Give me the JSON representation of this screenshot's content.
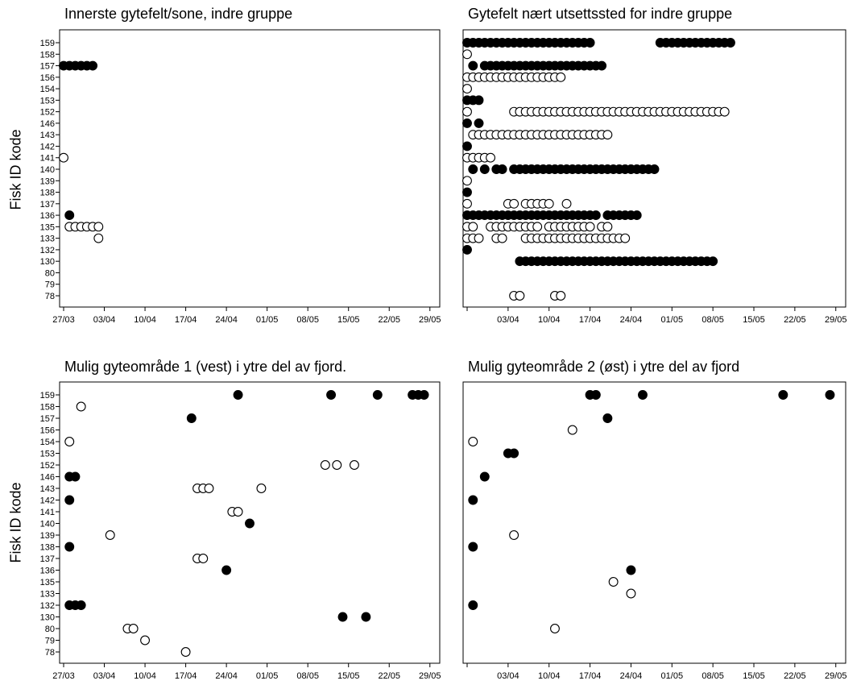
{
  "y_axis_label": "Fisk ID kode",
  "chart_data": [
    {
      "type": "scatter",
      "title": "Innerste gytefelt/sone, indre gruppe",
      "ylabel": "Fisk ID kode",
      "show_ylabel": true,
      "show_yticks": true,
      "x_ticks": [
        "27/03",
        "03/04",
        "10/04",
        "17/04",
        "24/04",
        "01/05",
        "08/05",
        "15/05",
        "22/05",
        "29/05"
      ],
      "show_first_x_tick": true,
      "xlim": [
        "27/03",
        "30/05"
      ],
      "y_categories": [
        "159",
        "158",
        "157",
        "156",
        "154",
        "153",
        "152",
        "146",
        "143",
        "142",
        "141",
        "140",
        "139",
        "138",
        "137",
        "136",
        "135",
        "133",
        "132",
        "130",
        "80",
        "79",
        "78"
      ],
      "legend": [],
      "points": [
        {
          "x": "27/03",
          "y": "157",
          "fill": "filled"
        },
        {
          "x": "28/03",
          "y": "157",
          "fill": "filled"
        },
        {
          "x": "29/03",
          "y": "157",
          "fill": "filled"
        },
        {
          "x": "30/03",
          "y": "157",
          "fill": "filled"
        },
        {
          "x": "31/03",
          "y": "157",
          "fill": "filled"
        },
        {
          "x": "01/04",
          "y": "157",
          "fill": "filled"
        },
        {
          "x": "27/03",
          "y": "141",
          "fill": "open"
        },
        {
          "x": "28/03",
          "y": "136",
          "fill": "filled"
        },
        {
          "x": "28/03",
          "y": "135",
          "fill": "open"
        },
        {
          "x": "29/03",
          "y": "135",
          "fill": "open"
        },
        {
          "x": "30/03",
          "y": "135",
          "fill": "open"
        },
        {
          "x": "31/03",
          "y": "135",
          "fill": "open"
        },
        {
          "x": "01/04",
          "y": "135",
          "fill": "open"
        },
        {
          "x": "02/04",
          "y": "135",
          "fill": "open"
        },
        {
          "x": "02/04",
          "y": "133",
          "fill": "open"
        }
      ]
    },
    {
      "type": "scatter",
      "title": "Gytefelt nært utsettssted for indre gruppe",
      "ylabel": "",
      "show_ylabel": false,
      "show_yticks": false,
      "x_ticks": [
        "27/03",
        "03/04",
        "10/04",
        "17/04",
        "24/04",
        "01/05",
        "08/05",
        "15/05",
        "22/05",
        "29/05"
      ],
      "show_first_x_tick": false,
      "xlim": [
        "27/03",
        "30/05"
      ],
      "y_categories": [
        "159",
        "158",
        "157",
        "156",
        "154",
        "153",
        "152",
        "146",
        "143",
        "142",
        "141",
        "140",
        "139",
        "138",
        "137",
        "136",
        "135",
        "133",
        "132",
        "130",
        "80",
        "79",
        "78"
      ],
      "legend": [],
      "segments": [
        {
          "y": "159",
          "from": "27/03",
          "to": "17/04",
          "fill": "filled"
        },
        {
          "y": "159",
          "from": "29/04",
          "to": "11/05",
          "fill": "filled"
        },
        {
          "y": "157",
          "from": "30/03",
          "to": "19/04",
          "fill": "filled"
        },
        {
          "y": "156",
          "from": "27/03",
          "to": "12/04",
          "fill": "open"
        },
        {
          "y": "152",
          "from": "04/04",
          "to": "10/05",
          "fill": "open"
        },
        {
          "y": "143",
          "from": "28/03",
          "to": "20/04",
          "fill": "open"
        },
        {
          "y": "141",
          "from": "27/03",
          "to": "31/03",
          "fill": "open"
        },
        {
          "y": "140",
          "from": "04/04",
          "to": "28/04",
          "fill": "filled"
        },
        {
          "y": "136",
          "from": "27/03",
          "to": "18/04",
          "fill": "filled"
        },
        {
          "y": "136",
          "from": "20/04",
          "to": "25/04",
          "fill": "filled"
        },
        {
          "y": "135",
          "from": "31/03",
          "to": "08/04",
          "fill": "open"
        },
        {
          "y": "135",
          "from": "10/04",
          "to": "17/04",
          "fill": "open"
        },
        {
          "y": "133",
          "from": "06/04",
          "to": "23/04",
          "fill": "open"
        },
        {
          "y": "130",
          "from": "05/04",
          "to": "08/05",
          "fill": "filled"
        }
      ],
      "points": [
        {
          "x": "27/03",
          "y": "158",
          "fill": "open"
        },
        {
          "x": "28/03",
          "y": "157",
          "fill": "filled"
        },
        {
          "x": "27/03",
          "y": "154",
          "fill": "open"
        },
        {
          "x": "27/03",
          "y": "153",
          "fill": "filled"
        },
        {
          "x": "28/03",
          "y": "153",
          "fill": "filled"
        },
        {
          "x": "29/03",
          "y": "153",
          "fill": "filled"
        },
        {
          "x": "27/03",
          "y": "152",
          "fill": "open"
        },
        {
          "x": "27/03",
          "y": "146",
          "fill": "filled"
        },
        {
          "x": "29/03",
          "y": "146",
          "fill": "filled"
        },
        {
          "x": "27/03",
          "y": "142",
          "fill": "filled"
        },
        {
          "x": "28/03",
          "y": "140",
          "fill": "filled"
        },
        {
          "x": "30/03",
          "y": "140",
          "fill": "filled"
        },
        {
          "x": "01/04",
          "y": "140",
          "fill": "filled"
        },
        {
          "x": "02/04",
          "y": "140",
          "fill": "filled"
        },
        {
          "x": "27/03",
          "y": "139",
          "fill": "open"
        },
        {
          "x": "27/03",
          "y": "138",
          "fill": "filled"
        },
        {
          "x": "27/03",
          "y": "137",
          "fill": "open"
        },
        {
          "x": "03/04",
          "y": "137",
          "fill": "open"
        },
        {
          "x": "04/04",
          "y": "137",
          "fill": "open"
        },
        {
          "x": "06/04",
          "y": "137",
          "fill": "open"
        },
        {
          "x": "07/04",
          "y": "137",
          "fill": "open"
        },
        {
          "x": "08/04",
          "y": "137",
          "fill": "open"
        },
        {
          "x": "09/04",
          "y": "137",
          "fill": "open"
        },
        {
          "x": "10/04",
          "y": "137",
          "fill": "open"
        },
        {
          "x": "13/04",
          "y": "137",
          "fill": "open"
        },
        {
          "x": "27/03",
          "y": "135",
          "fill": "open"
        },
        {
          "x": "28/03",
          "y": "135",
          "fill": "open"
        },
        {
          "x": "19/04",
          "y": "135",
          "fill": "open"
        },
        {
          "x": "20/04",
          "y": "135",
          "fill": "open"
        },
        {
          "x": "27/03",
          "y": "133",
          "fill": "open"
        },
        {
          "x": "28/03",
          "y": "133",
          "fill": "open"
        },
        {
          "x": "29/03",
          "y": "133",
          "fill": "open"
        },
        {
          "x": "01/04",
          "y": "133",
          "fill": "open"
        },
        {
          "x": "02/04",
          "y": "133",
          "fill": "open"
        },
        {
          "x": "27/03",
          "y": "132",
          "fill": "filled"
        },
        {
          "x": "04/04",
          "y": "78",
          "fill": "open"
        },
        {
          "x": "05/04",
          "y": "78",
          "fill": "open"
        },
        {
          "x": "11/04",
          "y": "78",
          "fill": "open"
        },
        {
          "x": "12/04",
          "y": "78",
          "fill": "open"
        }
      ]
    },
    {
      "type": "scatter",
      "title": "Mulig gyteområde 1 (vest) i ytre del av fjord.",
      "ylabel": "Fisk ID kode",
      "show_ylabel": true,
      "show_yticks": true,
      "x_ticks": [
        "27/03",
        "03/04",
        "10/04",
        "17/04",
        "24/04",
        "01/05",
        "08/05",
        "15/05",
        "22/05",
        "29/05"
      ],
      "show_first_x_tick": true,
      "xlim": [
        "27/03",
        "30/05"
      ],
      "y_categories": [
        "159",
        "158",
        "157",
        "156",
        "154",
        "153",
        "152",
        "146",
        "143",
        "142",
        "141",
        "140",
        "139",
        "138",
        "137",
        "136",
        "135",
        "133",
        "132",
        "130",
        "80",
        "79",
        "78"
      ],
      "legend": [],
      "points": [
        {
          "x": "26/04",
          "y": "159",
          "fill": "filled"
        },
        {
          "x": "12/05",
          "y": "159",
          "fill": "filled"
        },
        {
          "x": "20/05",
          "y": "159",
          "fill": "filled"
        },
        {
          "x": "26/05",
          "y": "159",
          "fill": "filled"
        },
        {
          "x": "27/05",
          "y": "159",
          "fill": "filled"
        },
        {
          "x": "28/05",
          "y": "159",
          "fill": "filled"
        },
        {
          "x": "30/03",
          "y": "158",
          "fill": "open"
        },
        {
          "x": "18/04",
          "y": "157",
          "fill": "filled"
        },
        {
          "x": "28/03",
          "y": "154",
          "fill": "open"
        },
        {
          "x": "11/05",
          "y": "152",
          "fill": "open"
        },
        {
          "x": "13/05",
          "y": "152",
          "fill": "open"
        },
        {
          "x": "16/05",
          "y": "152",
          "fill": "open"
        },
        {
          "x": "28/03",
          "y": "146",
          "fill": "filled"
        },
        {
          "x": "29/03",
          "y": "146",
          "fill": "filled"
        },
        {
          "x": "19/04",
          "y": "143",
          "fill": "open"
        },
        {
          "x": "20/04",
          "y": "143",
          "fill": "open"
        },
        {
          "x": "21/04",
          "y": "143",
          "fill": "open"
        },
        {
          "x": "30/04",
          "y": "143",
          "fill": "open"
        },
        {
          "x": "28/03",
          "y": "142",
          "fill": "filled"
        },
        {
          "x": "25/04",
          "y": "141",
          "fill": "open"
        },
        {
          "x": "26/04",
          "y": "141",
          "fill": "open"
        },
        {
          "x": "28/04",
          "y": "140",
          "fill": "filled"
        },
        {
          "x": "04/04",
          "y": "139",
          "fill": "open"
        },
        {
          "x": "28/03",
          "y": "138",
          "fill": "filled"
        },
        {
          "x": "19/04",
          "y": "137",
          "fill": "open"
        },
        {
          "x": "20/04",
          "y": "137",
          "fill": "open"
        },
        {
          "x": "24/04",
          "y": "136",
          "fill": "filled"
        },
        {
          "x": "28/03",
          "y": "132",
          "fill": "filled"
        },
        {
          "x": "29/03",
          "y": "132",
          "fill": "filled"
        },
        {
          "x": "30/03",
          "y": "132",
          "fill": "filled"
        },
        {
          "x": "14/05",
          "y": "130",
          "fill": "filled"
        },
        {
          "x": "18/05",
          "y": "130",
          "fill": "filled"
        },
        {
          "x": "07/04",
          "y": "80",
          "fill": "open"
        },
        {
          "x": "08/04",
          "y": "80",
          "fill": "open"
        },
        {
          "x": "10/04",
          "y": "79",
          "fill": "open"
        },
        {
          "x": "17/04",
          "y": "78",
          "fill": "open"
        }
      ]
    },
    {
      "type": "scatter",
      "title": "Mulig gyteområde 2 (øst) i ytre del av fjord",
      "ylabel": "",
      "show_ylabel": false,
      "show_yticks": false,
      "x_ticks": [
        "27/03",
        "03/04",
        "10/04",
        "17/04",
        "24/04",
        "01/05",
        "08/05",
        "15/05",
        "22/05",
        "29/05"
      ],
      "show_first_x_tick": false,
      "xlim": [
        "27/03",
        "30/05"
      ],
      "y_categories": [
        "159",
        "158",
        "157",
        "156",
        "154",
        "153",
        "152",
        "146",
        "143",
        "142",
        "141",
        "140",
        "139",
        "138",
        "137",
        "136",
        "135",
        "133",
        "132",
        "130",
        "80",
        "79",
        "78"
      ],
      "legend": [],
      "points": [
        {
          "x": "17/04",
          "y": "159",
          "fill": "filled"
        },
        {
          "x": "18/04",
          "y": "159",
          "fill": "filled"
        },
        {
          "x": "26/04",
          "y": "159",
          "fill": "filled"
        },
        {
          "x": "20/05",
          "y": "159",
          "fill": "filled"
        },
        {
          "x": "28/05",
          "y": "159",
          "fill": "filled"
        },
        {
          "x": "20/04",
          "y": "157",
          "fill": "filled"
        },
        {
          "x": "14/04",
          "y": "156",
          "fill": "open"
        },
        {
          "x": "28/03",
          "y": "154",
          "fill": "open"
        },
        {
          "x": "03/04",
          "y": "153",
          "fill": "filled"
        },
        {
          "x": "04/04",
          "y": "153",
          "fill": "filled"
        },
        {
          "x": "30/03",
          "y": "146",
          "fill": "filled"
        },
        {
          "x": "28/03",
          "y": "142",
          "fill": "filled"
        },
        {
          "x": "04/04",
          "y": "139",
          "fill": "open"
        },
        {
          "x": "28/03",
          "y": "138",
          "fill": "filled"
        },
        {
          "x": "24/04",
          "y": "136",
          "fill": "filled"
        },
        {
          "x": "21/04",
          "y": "135",
          "fill": "open"
        },
        {
          "x": "24/04",
          "y": "133",
          "fill": "open"
        },
        {
          "x": "28/03",
          "y": "132",
          "fill": "filled"
        },
        {
          "x": "11/04",
          "y": "80",
          "fill": "open"
        }
      ]
    }
  ]
}
